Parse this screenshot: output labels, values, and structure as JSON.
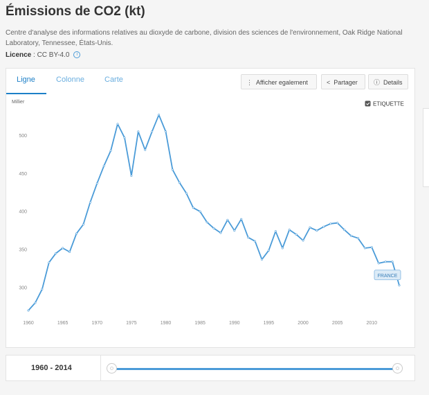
{
  "header": {
    "title": "Émissions de CO2 (kt)",
    "description": "Centre d'analyse des informations relatives au dioxyde de carbone, division des sciences de l'environnement, Oak Ridge National Laboratory, Tennessee, États-Unis.",
    "licence_label": "Licence",
    "licence_value": ": CC BY-4.0",
    "info_icon": "i"
  },
  "tabs": [
    {
      "label": "Ligne",
      "active": true
    },
    {
      "label": "Colonne",
      "active": false
    },
    {
      "label": "Carte",
      "active": false
    }
  ],
  "toolbar": {
    "afficher_label": "Afficher egalement",
    "partager_label": "Partager",
    "details_label": "Details"
  },
  "legend": {
    "etiquette_label": "ETIQUETTE",
    "checked": true
  },
  "footer": {
    "range_start": "1960",
    "range_sep": " - ",
    "range_end": "2014"
  },
  "colors": {
    "line": "#4a9bd8",
    "accent": "#1c7fc7"
  },
  "chart_data": {
    "type": "line",
    "ylabel": "Millier",
    "ylim": [
      260,
      545
    ],
    "xlim": [
      1960,
      2014
    ],
    "yticks": [
      300,
      350,
      400,
      450,
      500
    ],
    "xticks": [
      1960,
      1965,
      1970,
      1975,
      1980,
      1985,
      1990,
      1995,
      2000,
      2005,
      2010
    ],
    "x": [
      1960,
      1961,
      1962,
      1963,
      1964,
      1965,
      1966,
      1967,
      1968,
      1969,
      1970,
      1971,
      1972,
      1973,
      1974,
      1975,
      1976,
      1977,
      1978,
      1979,
      1980,
      1981,
      1982,
      1983,
      1984,
      1985,
      1986,
      1987,
      1988,
      1989,
      1990,
      1991,
      1992,
      1993,
      1994,
      1995,
      1996,
      1997,
      1998,
      1999,
      2000,
      2001,
      2002,
      2003,
      2004,
      2005,
      2006,
      2007,
      2008,
      2009,
      2010,
      2011,
      2012,
      2013,
      2014
    ],
    "series": [
      {
        "name": "FRANCE",
        "values": [
          270,
          280,
          298,
          333,
          345,
          352,
          347,
          371,
          383,
          412,
          437,
          460,
          480,
          515,
          497,
          447,
          505,
          481,
          505,
          527,
          505,
          455,
          438,
          424,
          405,
          400,
          386,
          378,
          372,
          389,
          375,
          390,
          366,
          361,
          337,
          349,
          374,
          352,
          376,
          370,
          362,
          379,
          375,
          380,
          384,
          385,
          376,
          368,
          365,
          352,
          353,
          332,
          334,
          334,
          303
        ]
      }
    ],
    "legend_position": "end-of-line",
    "grid": false
  }
}
